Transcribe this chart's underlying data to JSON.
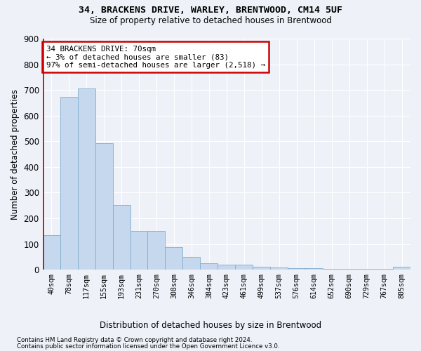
{
  "title1": "34, BRACKENS DRIVE, WARLEY, BRENTWOOD, CM14 5UF",
  "title2": "Size of property relative to detached houses in Brentwood",
  "xlabel": "Distribution of detached houses by size in Brentwood",
  "ylabel": "Number of detached properties",
  "categories": [
    "40sqm",
    "78sqm",
    "117sqm",
    "155sqm",
    "193sqm",
    "231sqm",
    "270sqm",
    "308sqm",
    "346sqm",
    "384sqm",
    "423sqm",
    "461sqm",
    "499sqm",
    "537sqm",
    "576sqm",
    "614sqm",
    "652sqm",
    "690sqm",
    "729sqm",
    "767sqm",
    "805sqm"
  ],
  "values": [
    135,
    672,
    705,
    493,
    252,
    150,
    150,
    87,
    50,
    25,
    20,
    20,
    10,
    8,
    5,
    5,
    3,
    3,
    3,
    3,
    10
  ],
  "bar_color": "#c5d8ed",
  "bar_edge_color": "#7faecf",
  "vline_color": "#cc0000",
  "annotation_line1": "34 BRACKENS DRIVE: 70sqm",
  "annotation_line2": "← 3% of detached houses are smaller (83)",
  "annotation_line3": "97% of semi-detached houses are larger (2,518) →",
  "annotation_box_color": "#ffffff",
  "annotation_box_edge": "#cc0000",
  "footer1": "Contains HM Land Registry data © Crown copyright and database right 2024.",
  "footer2": "Contains public sector information licensed under the Open Government Licence v3.0.",
  "ylim": [
    0,
    900
  ],
  "yticks": [
    0,
    100,
    200,
    300,
    400,
    500,
    600,
    700,
    800,
    900
  ],
  "background_color": "#eef2f8",
  "grid_color": "#ffffff"
}
